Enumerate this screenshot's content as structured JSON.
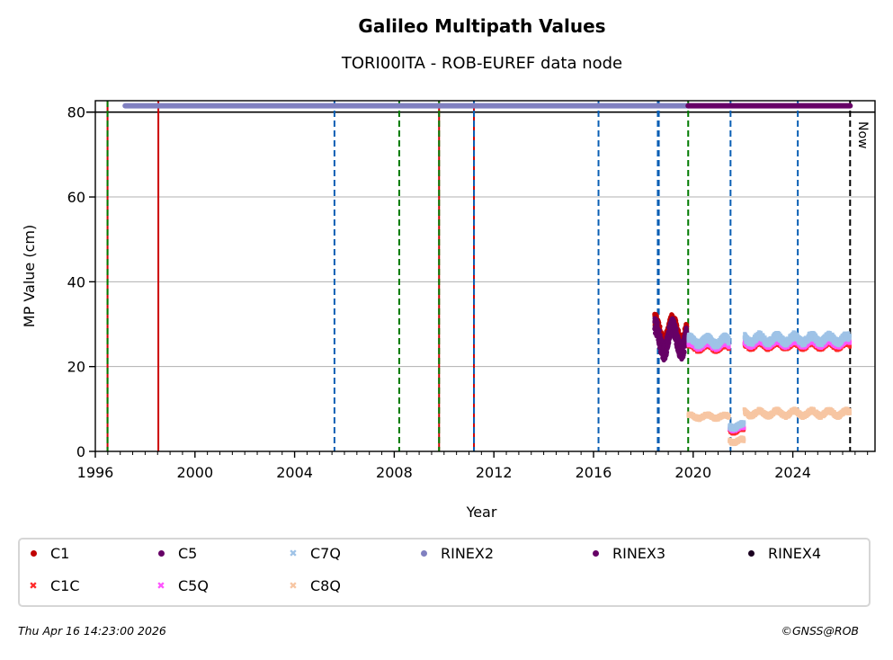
{
  "chart_data": {
    "type": "scatter",
    "title": "Galileo Multipath Values",
    "subtitle": "TORI00ITA - ROB-EUREF data node",
    "xlabel": "Year",
    "ylabel": "MP Value (cm)",
    "xlim": [
      1996.0,
      2027.3
    ],
    "ylim": [
      0,
      82.7
    ],
    "xticks": [
      1996,
      2000,
      2004,
      2008,
      2012,
      2016,
      2020,
      2024
    ],
    "xtick_labels": [
      "1996",
      "2000",
      "2004",
      "2008",
      "2012",
      "2016",
      "2020",
      "2024"
    ],
    "yticks": [
      0,
      20,
      40,
      60,
      80
    ],
    "ytick_labels": [
      "0",
      "20",
      "40",
      "60",
      "80"
    ],
    "grid": "y",
    "now_label": "Now",
    "reference_hline": 80,
    "events": [
      {
        "x": 1996.49,
        "color": "#cc0000",
        "style": "solid"
      },
      {
        "x": 1996.49,
        "color": "#007a00",
        "style": "dashed"
      },
      {
        "x": 1998.53,
        "color": "#cc0000",
        "style": "solid"
      },
      {
        "x": 2005.6,
        "color": "#0a5fb4",
        "style": "dashed"
      },
      {
        "x": 2008.2,
        "color": "#007a00",
        "style": "dashed"
      },
      {
        "x": 2009.8,
        "color": "#cc0000",
        "style": "solid"
      },
      {
        "x": 2009.8,
        "color": "#007a00",
        "style": "dashed"
      },
      {
        "x": 2011.2,
        "color": "#cc0000",
        "style": "solid"
      },
      {
        "x": 2011.2,
        "color": "#0a5fb4",
        "style": "dashed"
      },
      {
        "x": 2016.2,
        "color": "#0a5fb4",
        "style": "dashed"
      },
      {
        "x": 2018.58,
        "color": "#0a5fb4",
        "style": "dashed"
      },
      {
        "x": 2018.62,
        "color": "#0a5fb4",
        "style": "dashed"
      },
      {
        "x": 2019.8,
        "color": "#007a00",
        "style": "dashed"
      },
      {
        "x": 2021.5,
        "color": "#0a5fb4",
        "style": "dashed"
      },
      {
        "x": 2024.2,
        "color": "#0a5fb4",
        "style": "dashed"
      },
      {
        "x": 2026.3,
        "color": "#000000",
        "style": "dashed"
      }
    ],
    "rinex_bars": [
      {
        "name": "RINEX2",
        "start": 1997.2,
        "end": 2019.8,
        "y": 81.5,
        "color": "#8080c0"
      },
      {
        "name": "RINEX3",
        "start": 2019.8,
        "end": 2026.3,
        "y": 81.5,
        "color": "#660066"
      }
    ],
    "series": [
      {
        "name": "C1",
        "marker": "dot",
        "color": "#c00000",
        "segments": [
          {
            "start": 2018.45,
            "end": 2019.75,
            "base": 28.5,
            "amp": 2.5,
            "noise": 1.5
          }
        ]
      },
      {
        "name": "C5",
        "marker": "dot",
        "color": "#660066",
        "segments": [
          {
            "start": 2018.45,
            "end": 2019.75,
            "base": 26.5,
            "amp": 3.0,
            "noise": 2.0
          }
        ]
      },
      {
        "name": "C1C",
        "marker": "x",
        "color": "#ff2a2a",
        "segments": [
          {
            "start": 2019.8,
            "end": 2021.45,
            "base": 24.5,
            "amp": 0.6,
            "noise": 0.6
          },
          {
            "start": 2021.45,
            "end": 2022.05,
            "base": 5.0,
            "amp": 0.4,
            "noise": 0.5
          },
          {
            "start": 2022.05,
            "end": 2026.3,
            "base": 25.0,
            "amp": 0.6,
            "noise": 0.6
          }
        ]
      },
      {
        "name": "C5Q",
        "marker": "x",
        "color": "#ff55ff",
        "segments": [
          {
            "start": 2019.8,
            "end": 2021.45,
            "base": 25.0,
            "amp": 0.6,
            "noise": 0.6
          },
          {
            "start": 2021.45,
            "end": 2022.05,
            "base": 5.5,
            "amp": 0.4,
            "noise": 0.5
          },
          {
            "start": 2022.05,
            "end": 2026.3,
            "base": 25.5,
            "amp": 0.6,
            "noise": 0.6
          }
        ]
      },
      {
        "name": "C7Q",
        "marker": "x",
        "color": "#9fc3e7",
        "segments": [
          {
            "start": 2019.8,
            "end": 2021.45,
            "base": 26.0,
            "amp": 0.8,
            "noise": 0.9
          },
          {
            "start": 2021.45,
            "end": 2022.05,
            "base": 6.0,
            "amp": 0.5,
            "noise": 0.6
          },
          {
            "start": 2022.05,
            "end": 2026.3,
            "base": 26.5,
            "amp": 0.8,
            "noise": 0.9
          }
        ]
      },
      {
        "name": "C8Q",
        "marker": "x",
        "color": "#f7c6a3",
        "segments": [
          {
            "start": 2019.8,
            "end": 2021.45,
            "base": 8.2,
            "amp": 0.4,
            "noise": 0.5
          },
          {
            "start": 2021.45,
            "end": 2022.05,
            "base": 2.5,
            "amp": 0.4,
            "noise": 0.5
          },
          {
            "start": 2022.05,
            "end": 2026.3,
            "base": 9.0,
            "amp": 0.6,
            "noise": 0.6
          }
        ]
      }
    ],
    "legend": {
      "placement": "below",
      "entries": [
        {
          "name": "C1",
          "marker": "dot",
          "color": "#c00000"
        },
        {
          "name": "C5",
          "marker": "dot",
          "color": "#660066"
        },
        {
          "name": "C7Q",
          "marker": "x",
          "color": "#9fc3e7"
        },
        {
          "name": "RINEX2",
          "marker": "dot",
          "color": "#8080c0"
        },
        {
          "name": "RINEX3",
          "marker": "dot",
          "color": "#660066"
        },
        {
          "name": "RINEX4",
          "marker": "dot",
          "color": "#1a0020"
        },
        {
          "name": "C1C",
          "marker": "x",
          "color": "#ff2a2a"
        },
        {
          "name": "C5Q",
          "marker": "x",
          "color": "#ff55ff"
        },
        {
          "name": "C8Q",
          "marker": "x",
          "color": "#f7c6a3"
        }
      ]
    }
  },
  "footer": {
    "timestamp": "Thu Apr 16 14:23:00 2026",
    "copyright": "©GNSS@ROB"
  }
}
